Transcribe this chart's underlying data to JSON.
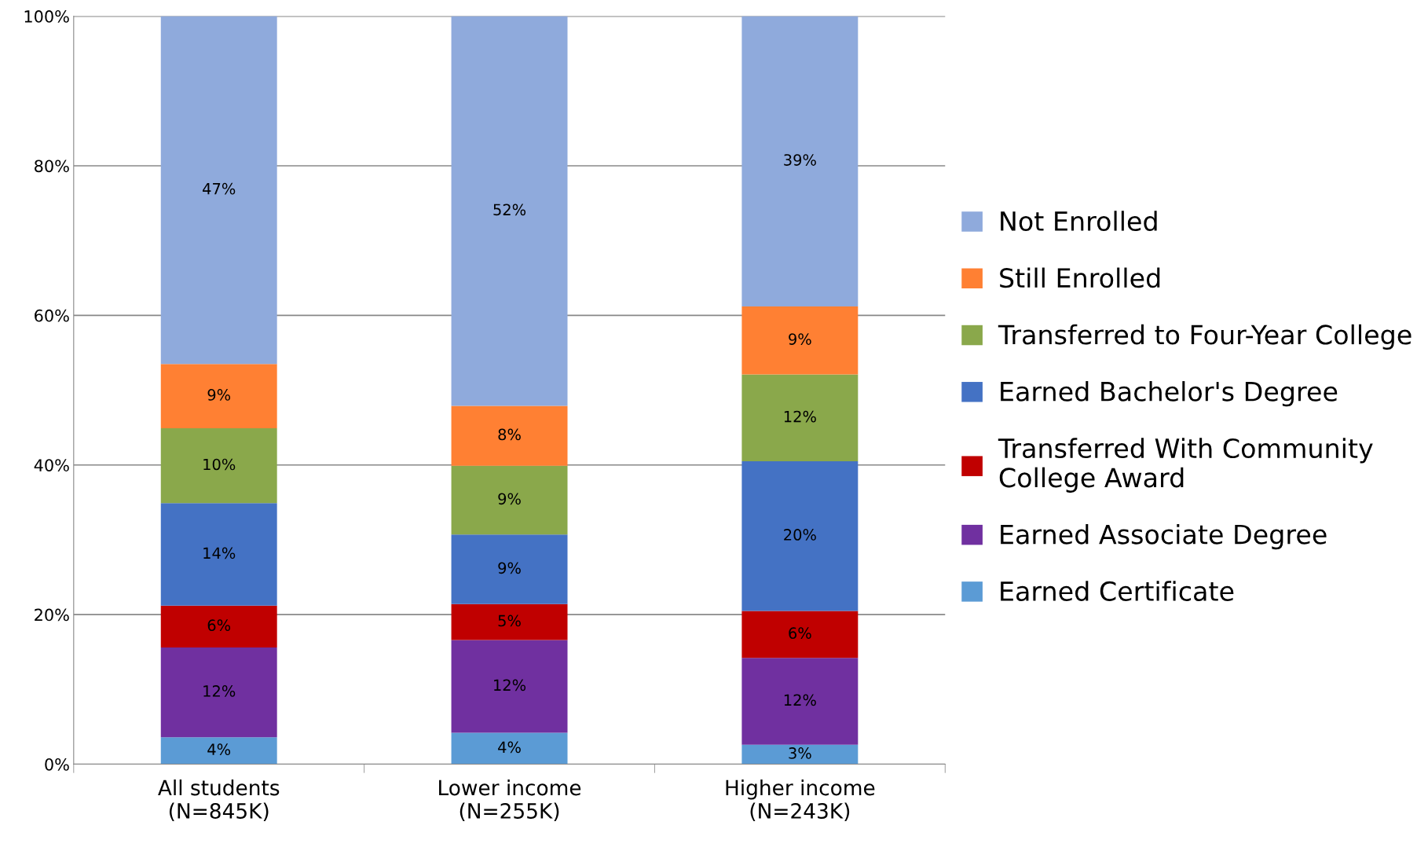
{
  "chart_data": {
    "type": "bar",
    "stacked": true,
    "categories": [
      "All students\n(N=845K)",
      "Lower income\n(N=255K)",
      "Higher income\n(N=243K)"
    ],
    "ylim": [
      0,
      100
    ],
    "yticks": [
      {
        "value": 0,
        "label": "0%"
      },
      {
        "value": 20,
        "label": "20%"
      },
      {
        "value": 40,
        "label": "40%"
      },
      {
        "value": 60,
        "label": "60%"
      },
      {
        "value": 80,
        "label": "80%"
      },
      {
        "value": 100,
        "label": "100%"
      }
    ],
    "grid": "y",
    "legend": "right",
    "series": [
      {
        "name": "Earned Certificate",
        "color": "#5b9bd5",
        "values": [
          3.6,
          4.2,
          2.6
        ],
        "value_labels": [
          "4%",
          "4%",
          "3%"
        ]
      },
      {
        "name": "Earned Associate Degree",
        "color": "#7030a0",
        "values": [
          12.0,
          12.4,
          11.6
        ],
        "value_labels": [
          "12%",
          "12%",
          "12%"
        ]
      },
      {
        "name": "Transferred With Community\nCollege Award",
        "color": "#c00000",
        "values": [
          5.6,
          4.8,
          6.3
        ],
        "value_labels": [
          "6%",
          "5%",
          "6%"
        ]
      },
      {
        "name": "Earned Bachelor's Degree",
        "color": "#4472c4",
        "values": [
          13.7,
          9.3,
          20.0
        ],
        "value_labels": [
          "14%",
          "9%",
          "20%"
        ]
      },
      {
        "name": "Transferred to Four-Year College",
        "color": "#8aa84b",
        "values": [
          10.0,
          9.2,
          11.6
        ],
        "value_labels": [
          "10%",
          "9%",
          "12%"
        ]
      },
      {
        "name": "Still Enrolled",
        "color": "#ff8033",
        "values": [
          8.6,
          8.0,
          9.1
        ],
        "value_labels": [
          "9%",
          "8%",
          "9%"
        ]
      },
      {
        "name": "Not Enrolled",
        "color": "#8faadc",
        "values": [
          46.5,
          52.1,
          38.8
        ],
        "value_labels": [
          "47%",
          "52%",
          "39%"
        ]
      }
    ]
  }
}
